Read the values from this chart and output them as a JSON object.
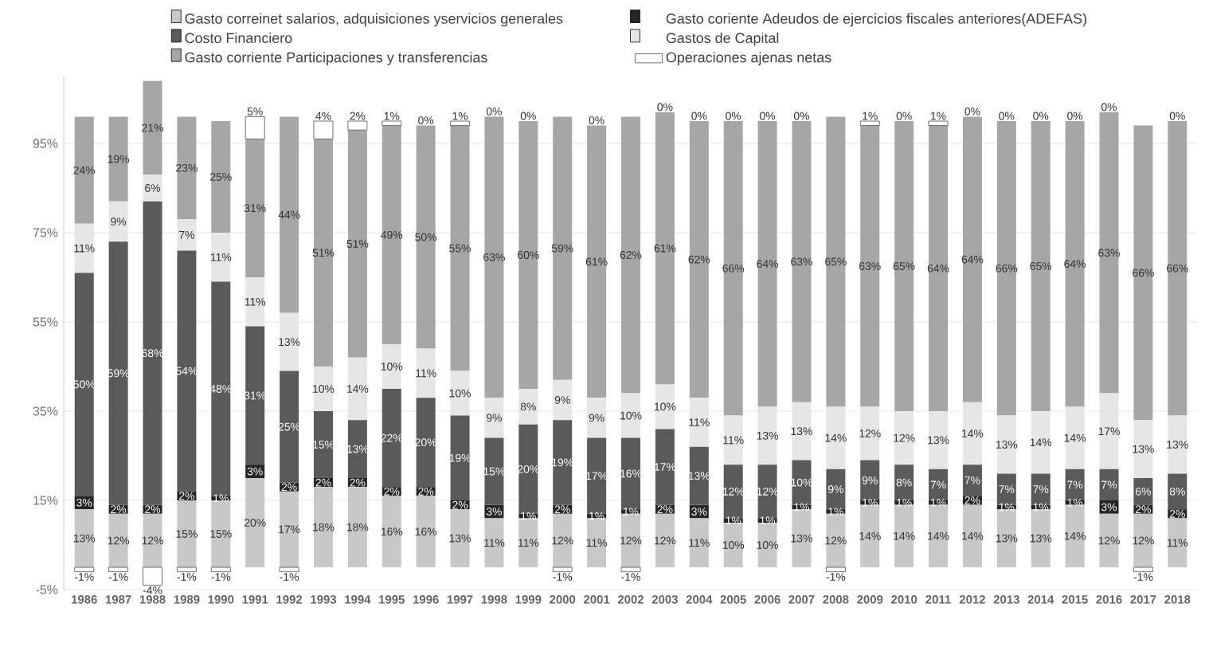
{
  "chart_data": {
    "type": "bar",
    "stacked": true,
    "grid": "y",
    "legend": "top",
    "categories": [
      "1986",
      "1987",
      "1988",
      "1989",
      "1990",
      "1991",
      "1992",
      "1993",
      "1994",
      "1995",
      "1996",
      "1997",
      "1998",
      "1999",
      "2000",
      "2001",
      "2002",
      "2003",
      "2004",
      "2005",
      "2006",
      "2007",
      "2008",
      "2009",
      "2010",
      "2011",
      "2012",
      "2013",
      "2014",
      "2015",
      "2016",
      "2017",
      "2018"
    ],
    "ylim": [
      -5,
      110
    ],
    "yticks": [
      {
        "value": -5,
        "label": "-5%"
      },
      {
        "value": 15,
        "label": "15%"
      },
      {
        "value": 35,
        "label": "35%"
      },
      {
        "value": 55,
        "label": "55%"
      },
      {
        "value": 75,
        "label": "75%"
      },
      {
        "value": 95,
        "label": "95%"
      }
    ],
    "series": [
      {
        "name": "Gasto correinet salarios, adquisiciones yservicios generales",
        "color": "#c8c8c8",
        "values": [
          13,
          12,
          12,
          15,
          15,
          20,
          17,
          18,
          18,
          16,
          16,
          13,
          11,
          11,
          12,
          11,
          12,
          12,
          11,
          10,
          10,
          13,
          12,
          14,
          14,
          14,
          14,
          13,
          13,
          14,
          12,
          12,
          11
        ],
        "value_labels": [
          "13%",
          "12%",
          "12%",
          "15%",
          "15%",
          "20%",
          "17%",
          "18%",
          "18%",
          "16%",
          "16%",
          "13%",
          "11%",
          "11%",
          "12%",
          "11%",
          "12%",
          "12%",
          "11%",
          "10%",
          "10%",
          "13%",
          "12%",
          "14%",
          "14%",
          "14%",
          "14%",
          "13%",
          "13%",
          "14%",
          "12%",
          "12%",
          "11%"
        ]
      },
      {
        "name": "Gasto coriente Adeudos de ejercicios fiscales anteriores(ADEFAS)",
        "color": "#262626",
        "values": [
          3,
          2,
          2,
          2,
          1,
          3,
          2,
          2,
          2,
          2,
          2,
          2,
          3,
          1,
          2,
          1,
          1,
          2,
          3,
          1,
          1,
          1,
          1,
          1,
          1,
          1,
          2,
          1,
          1,
          1,
          3,
          2,
          2
        ],
        "value_labels": [
          "3%",
          "2%",
          "2%",
          "2%",
          "1%",
          "3%",
          "2%",
          "2%",
          "2%",
          "2%",
          "2%",
          "2%",
          "3%",
          "1%",
          "2%",
          "1%",
          "1%",
          "2%",
          "3%",
          "1%",
          "1%",
          "1%",
          "1%",
          "1%",
          "1%",
          "1%",
          "2%",
          "1%",
          "1%",
          "1%",
          "3%",
          "2%",
          "2%"
        ]
      },
      {
        "name": "Costo Financiero",
        "color": "#5a5a5a",
        "values": [
          50,
          59,
          68,
          54,
          48,
          31,
          25,
          15,
          13,
          22,
          20,
          19,
          15,
          20,
          19,
          17,
          16,
          17,
          13,
          12,
          12,
          10,
          9,
          9,
          8,
          7,
          7,
          7,
          7,
          7,
          7,
          6,
          8
        ],
        "value_labels": [
          "50%",
          "59%",
          "68%",
          "54%",
          "48%",
          "31%",
          "25%",
          "15%",
          "13%",
          "22%",
          "20%",
          "19%",
          "15%",
          "20%",
          "19%",
          "17%",
          "16%",
          "17%",
          "13%",
          "12%",
          "12%",
          "10%",
          "9%",
          "9%",
          "8%",
          "7%",
          "7%",
          "7%",
          "7%",
          "7%",
          "7%",
          "6%",
          "8%"
        ]
      },
      {
        "name": "Gastos de Capital",
        "color": "#e6e6e6",
        "values": [
          11,
          9,
          6,
          7,
          11,
          11,
          13,
          10,
          14,
          10,
          11,
          10,
          9,
          8,
          9,
          9,
          10,
          10,
          11,
          11,
          13,
          13,
          14,
          12,
          12,
          13,
          14,
          13,
          14,
          14,
          17,
          13,
          13
        ],
        "value_labels": [
          "11%",
          "9%",
          "6%",
          "7%",
          "11%",
          "11%",
          "13%",
          "10%",
          "14%",
          "10%",
          "11%",
          "10%",
          "9%",
          "8%",
          "9%",
          "9%",
          "10%",
          "10%",
          "11%",
          "11%",
          "13%",
          "13%",
          "14%",
          "12%",
          "12%",
          "13%",
          "14%",
          "13%",
          "14%",
          "14%",
          "17%",
          "13%",
          "13%"
        ]
      },
      {
        "name": "Gasto corriente Participaciones y transferencias",
        "color": "#a6a6a6",
        "values": [
          24,
          19,
          21,
          23,
          25,
          31,
          44,
          51,
          51,
          49,
          50,
          55,
          63,
          60,
          59,
          61,
          62,
          61,
          62,
          66,
          64,
          63,
          65,
          63,
          65,
          64,
          64,
          66,
          65,
          64,
          63,
          66,
          66
        ],
        "value_labels": [
          "24%",
          "19%",
          "21%",
          "23%",
          "25%",
          "31%",
          "44%",
          "51%",
          "51%",
          "49%",
          "50%",
          "55%",
          "63%",
          "60%",
          "59%",
          "61%",
          "62%",
          "61%",
          "62%",
          "66%",
          "64%",
          "63%",
          "65%",
          "63%",
          "65%",
          "64%",
          "64%",
          "66%",
          "65%",
          "64%",
          "63%",
          "66%",
          "66%"
        ]
      },
      {
        "name": "Operaciones ajenas netas",
        "color": "#ffffff",
        "values": [
          -1,
          -1,
          -4,
          -1,
          -1,
          5,
          -1,
          4,
          2,
          1,
          0,
          1,
          0,
          0,
          -1,
          0,
          -1,
          0,
          0,
          0,
          0,
          0,
          -1,
          1,
          0,
          1,
          0,
          0,
          0,
          0,
          0,
          -1,
          0
        ],
        "value_labels": [
          "-1%",
          "-1%",
          "-4%",
          "-1%",
          "-1%",
          "5%",
          "-1%",
          "4%",
          "2%",
          "1%",
          "0%",
          "1%",
          "0%",
          "0%",
          "-1%",
          "0%",
          "-1%",
          "0%",
          "0%",
          "0%",
          "0%",
          "0%",
          "-1%",
          "1%",
          "0%",
          "1%",
          "0%",
          "0%",
          "0%",
          "0%",
          "0%",
          "-1%",
          "0%"
        ]
      }
    ]
  }
}
